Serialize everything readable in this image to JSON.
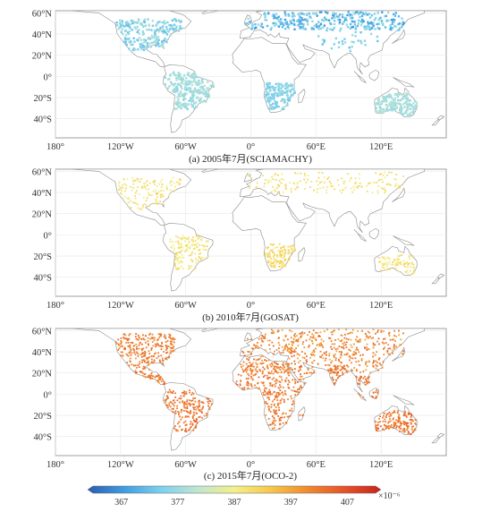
{
  "panels": [
    {
      "id": "a",
      "caption": "(a) 2005年7月(SCIAMACHY)",
      "dots": [
        {
          "region": "na",
          "lon": [
            -125,
            -65
          ],
          "lat": [
            25,
            55
          ],
          "n": 220,
          "lo": 372,
          "hi": 380
        },
        {
          "region": "sa",
          "lon": [
            -80,
            -35
          ],
          "lat": [
            -30,
            5
          ],
          "n": 240,
          "lo": 376,
          "hi": 380
        },
        {
          "region": "af",
          "lon": [
            10,
            40
          ],
          "lat": [
            -30,
            -5
          ],
          "n": 150,
          "lo": 373,
          "hi": 378
        },
        {
          "region": "au",
          "lon": [
            114,
            152
          ],
          "lat": [
            -37,
            -15
          ],
          "n": 160,
          "lo": 377,
          "hi": 380
        },
        {
          "region": "eurasia",
          "lon": [
            -10,
            140
          ],
          "lat": [
            45,
            62
          ],
          "n": 300,
          "lo": 368,
          "hi": 378
        },
        {
          "region": "asia",
          "lon": [
            60,
            135
          ],
          "lat": [
            25,
            48
          ],
          "n": 40,
          "lo": 372,
          "hi": 378
        }
      ]
    },
    {
      "id": "b",
      "caption": "(b) 2010年7月(GOSAT)",
      "dots": [
        {
          "region": "na",
          "lon": [
            -125,
            -65
          ],
          "lat": [
            25,
            55
          ],
          "n": 140,
          "lo": 385,
          "hi": 392
        },
        {
          "region": "sa",
          "lon": [
            -75,
            -38
          ],
          "lat": [
            -32,
            0
          ],
          "n": 150,
          "lo": 386,
          "hi": 392
        },
        {
          "region": "af",
          "lon": [
            12,
            40
          ],
          "lat": [
            -30,
            -8
          ],
          "n": 140,
          "lo": 388,
          "hi": 393
        },
        {
          "region": "au",
          "lon": [
            116,
            150
          ],
          "lat": [
            -36,
            -18
          ],
          "n": 90,
          "lo": 387,
          "hi": 391
        },
        {
          "region": "eurasia",
          "lon": [
            -5,
            140
          ],
          "lat": [
            40,
            60
          ],
          "n": 180,
          "lo": 386,
          "hi": 392
        }
      ]
    },
    {
      "id": "c",
      "caption": "(c) 2015年7月(OCO-2)",
      "dots": [
        {
          "region": "na",
          "lon": [
            -125,
            -70
          ],
          "lat": [
            20,
            58
          ],
          "n": 260,
          "lo": 398,
          "hi": 404
        },
        {
          "region": "ca",
          "lon": [
            -100,
            -80
          ],
          "lat": [
            8,
            20
          ],
          "n": 40,
          "lo": 399,
          "hi": 403
        },
        {
          "region": "sa",
          "lon": [
            -80,
            -35
          ],
          "lat": [
            -35,
            5
          ],
          "n": 200,
          "lo": 400,
          "hi": 404
        },
        {
          "region": "af",
          "lon": [
            -15,
            50
          ],
          "lat": [
            -32,
            30
          ],
          "n": 320,
          "lo": 399,
          "hi": 404
        },
        {
          "region": "eurasia",
          "lon": [
            -10,
            140
          ],
          "lat": [
            20,
            62
          ],
          "n": 520,
          "lo": 396,
          "hi": 404
        },
        {
          "region": "india",
          "lon": [
            70,
            90
          ],
          "lat": [
            8,
            28
          ],
          "n": 50,
          "lo": 400,
          "hi": 404
        },
        {
          "region": "au",
          "lon": [
            114,
            152
          ],
          "lat": [
            -38,
            -15
          ],
          "n": 150,
          "lo": 400,
          "hi": 404
        },
        {
          "region": "sea",
          "lon": [
            95,
            125
          ],
          "lat": [
            -8,
            18
          ],
          "n": 40,
          "lo": 400,
          "hi": 404
        }
      ]
    }
  ],
  "axes": {
    "lon_ticks": [
      "180°",
      "120°W",
      "60°W",
      "0°",
      "60°E",
      "120°E"
    ],
    "lon_values": [
      -180,
      -120,
      -60,
      0,
      60,
      120
    ],
    "lat_ticks": [
      "60°N",
      "40°N",
      "20°N",
      "0°",
      "20°S",
      "40°S"
    ],
    "lat_values": [
      60,
      40,
      20,
      0,
      -20,
      -40
    ],
    "lon_range": [
      -180,
      180
    ],
    "lat_range": [
      -58,
      62
    ],
    "grid": true
  },
  "colorbar": {
    "ticks": [
      "367",
      "377",
      "387",
      "397",
      "407"
    ],
    "values": [
      367,
      377,
      387,
      397,
      407
    ],
    "range": [
      362,
      412
    ],
    "unit": "×10⁻⁶",
    "colors": [
      "#2a5db0",
      "#3f9de0",
      "#7dd0ee",
      "#bfe6d0",
      "#f3f08a",
      "#f6c74a",
      "#f08a2e",
      "#e5532a",
      "#c8231e"
    ]
  }
}
